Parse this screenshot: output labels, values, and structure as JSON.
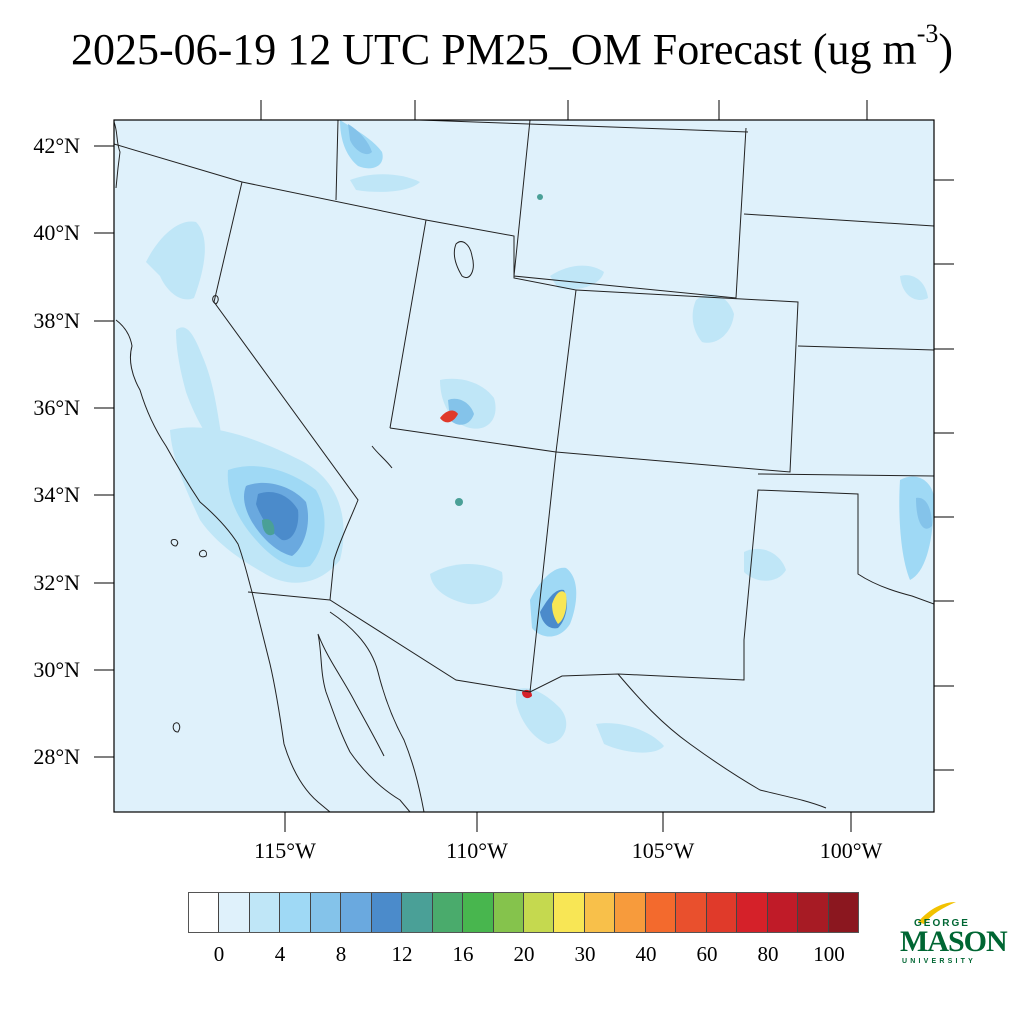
{
  "title": {
    "main": "2025-06-19 12 UTC PM25_OM Forecast (ug m",
    "exponent": "-3",
    "close": ")"
  },
  "map": {
    "background_color": "#dff1fb",
    "lat_labels": [
      "42°N",
      "40°N",
      "38°N",
      "36°N",
      "34°N",
      "32°N",
      "30°N",
      "28°N"
    ],
    "lon_labels": [
      "115°W",
      "110°W",
      "105°W",
      "100°W"
    ]
  },
  "colorbar": {
    "colors": [
      "#ffffff",
      "#dff1fb",
      "#bfe6f7",
      "#9fd9f5",
      "#84c3ea",
      "#6aa9df",
      "#4b8bcb",
      "#4aa097",
      "#4aab6c",
      "#48b64e",
      "#85c34c",
      "#c5d94f",
      "#f8e655",
      "#f8c04a",
      "#f79b3c",
      "#f36a2d",
      "#e9502d",
      "#e03a2a",
      "#d52129",
      "#c01b28",
      "#a71b24",
      "#8b171f"
    ],
    "labels": [
      "0",
      "4",
      "8",
      "12",
      "16",
      "20",
      "30",
      "40",
      "60",
      "80",
      "100"
    ]
  },
  "logo": {
    "george": "GEORGE",
    "mason": "MASON",
    "university": "UNIVERSITY",
    "color": "#006633",
    "accent": "#f2c200"
  }
}
